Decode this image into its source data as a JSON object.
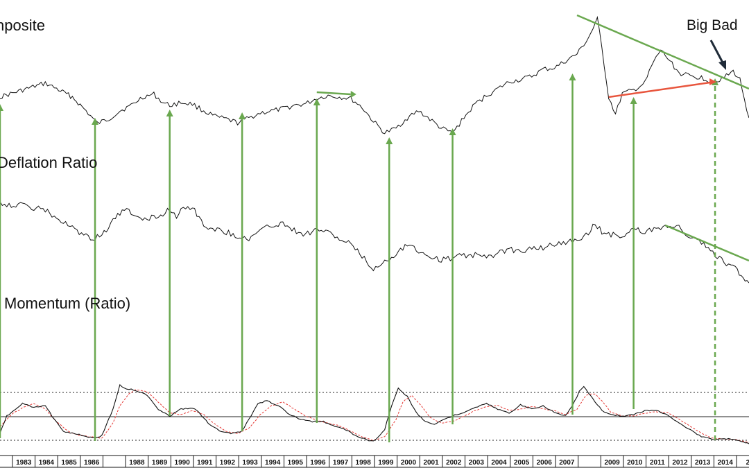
{
  "chart_data": {
    "type": "line",
    "panels": [
      {
        "id": "composite",
        "title": "nposite"
      },
      {
        "id": "ratio",
        "title": "Deflation Ratio"
      },
      {
        "id": "momentum",
        "title": "Momentum (Ratio)"
      }
    ],
    "annotation": "Big Bad",
    "year_labels": [
      "1983",
      "1984",
      "1985",
      "1986",
      "",
      "1988",
      "1989",
      "1990",
      "1991",
      "1992",
      "1993",
      "1994",
      "1995",
      "1996",
      "1997",
      "1998",
      "1999",
      "2000",
      "2001",
      "2002",
      "2003",
      "2004",
      "2005",
      "2006",
      "2007",
      "",
      "2009",
      "2010",
      "2011",
      "2012",
      "2013",
      "2014",
      "2"
    ],
    "x_range": [
      1982.0,
      2015.1
    ],
    "composite_series": [
      [
        1982.0,
        140
      ],
      [
        1983.0,
        130
      ],
      [
        1984.0,
        120
      ],
      [
        1984.5,
        128
      ],
      [
        1985.2,
        140
      ],
      [
        1985.8,
        160
      ],
      [
        1986.3,
        178
      ],
      [
        1986.8,
        172
      ],
      [
        1987.3,
        160
      ],
      [
        1987.8,
        152
      ],
      [
        1988.3,
        140
      ],
      [
        1988.8,
        136
      ],
      [
        1989.2,
        148
      ],
      [
        1989.5,
        152
      ],
      [
        1990.0,
        148
      ],
      [
        1990.5,
        150
      ],
      [
        1991.0,
        160
      ],
      [
        1991.5,
        168
      ],
      [
        1992.0,
        172
      ],
      [
        1992.5,
        177
      ],
      [
        1993.0,
        170
      ],
      [
        1993.5,
        163
      ],
      [
        1994.0,
        160
      ],
      [
        1994.5,
        157
      ],
      [
        1995.0,
        152
      ],
      [
        1995.5,
        150
      ],
      [
        1996.0,
        142
      ],
      [
        1996.5,
        138
      ],
      [
        1997.0,
        140
      ],
      [
        1997.5,
        142
      ],
      [
        1998.0,
        155
      ],
      [
        1998.5,
        175
      ],
      [
        1999.0,
        192
      ],
      [
        1999.5,
        185
      ],
      [
        2000.0,
        170
      ],
      [
        2000.5,
        160
      ],
      [
        2001.0,
        172
      ],
      [
        2001.5,
        185
      ],
      [
        2002.0,
        192
      ],
      [
        2002.5,
        170
      ],
      [
        2003.0,
        150
      ],
      [
        2003.5,
        138
      ],
      [
        2004.0,
        128
      ],
      [
        2004.5,
        118
      ],
      [
        2005.0,
        115
      ],
      [
        2005.5,
        110
      ],
      [
        2006.0,
        100
      ],
      [
        2006.5,
        98
      ],
      [
        2007.0,
        88
      ],
      [
        2007.5,
        78
      ],
      [
        2008.0,
        55
      ],
      [
        2008.4,
        28
      ],
      [
        2008.6,
        70
      ],
      [
        2008.9,
        140
      ],
      [
        2009.2,
        165
      ],
      [
        2009.5,
        135
      ],
      [
        2010.0,
        130
      ],
      [
        2010.5,
        120
      ],
      [
        2010.8,
        95
      ],
      [
        2011.2,
        72
      ],
      [
        2011.6,
        88
      ],
      [
        2012.0,
        105
      ],
      [
        2012.5,
        110
      ],
      [
        2013.0,
        112
      ],
      [
        2013.5,
        118
      ],
      [
        2014.0,
        112
      ],
      [
        2014.4,
        103
      ],
      [
        2014.7,
        115
      ],
      [
        2015.1,
        170
      ]
    ],
    "ratio_series": [
      [
        1982.0,
        292
      ],
      [
        1982.5,
        296
      ],
      [
        1983.0,
        296
      ],
      [
        1983.5,
        300
      ],
      [
        1984.0,
        303
      ],
      [
        1984.5,
        315
      ],
      [
        1985.0,
        325
      ],
      [
        1985.5,
        335
      ],
      [
        1986.0,
        345
      ],
      [
        1986.5,
        340
      ],
      [
        1987.0,
        318
      ],
      [
        1987.5,
        302
      ],
      [
        1988.0,
        312
      ],
      [
        1988.5,
        315
      ],
      [
        1989.0,
        312
      ],
      [
        1989.5,
        302
      ],
      [
        1989.8,
        312
      ],
      [
        1990.0,
        300
      ],
      [
        1990.5,
        298
      ],
      [
        1991.0,
        325
      ],
      [
        1991.5,
        330
      ],
      [
        1992.0,
        335
      ],
      [
        1992.5,
        340
      ],
      [
        1993.0,
        345
      ],
      [
        1993.5,
        332
      ],
      [
        1994.0,
        325
      ],
      [
        1994.5,
        322
      ],
      [
        1995.0,
        332
      ],
      [
        1995.5,
        338
      ],
      [
        1996.0,
        330
      ],
      [
        1996.5,
        335
      ],
      [
        1997.0,
        345
      ],
      [
        1997.5,
        352
      ],
      [
        1998.0,
        370
      ],
      [
        1998.5,
        388
      ],
      [
        1999.0,
        378
      ],
      [
        1999.5,
        365
      ],
      [
        2000.0,
        352
      ],
      [
        2000.5,
        362
      ],
      [
        2001.0,
        370
      ],
      [
        2001.5,
        375
      ],
      [
        2002.0,
        372
      ],
      [
        2002.5,
        368
      ],
      [
        2003.0,
        368
      ],
      [
        2003.5,
        372
      ],
      [
        2004.0,
        365
      ],
      [
        2004.5,
        360
      ],
      [
        2005.0,
        362
      ],
      [
        2005.5,
        358
      ],
      [
        2006.0,
        358
      ],
      [
        2006.5,
        352
      ],
      [
        2007.0,
        350
      ],
      [
        2007.5,
        345
      ],
      [
        2008.0,
        338
      ],
      [
        2008.3,
        322
      ],
      [
        2008.6,
        335
      ],
      [
        2009.0,
        338
      ],
      [
        2009.5,
        340
      ],
      [
        2010.0,
        330
      ],
      [
        2010.5,
        335
      ],
      [
        2011.0,
        330
      ],
      [
        2011.5,
        325
      ],
      [
        2012.0,
        328
      ],
      [
        2012.5,
        342
      ],
      [
        2013.0,
        350
      ],
      [
        2013.5,
        365
      ],
      [
        2014.0,
        378
      ],
      [
        2014.5,
        388
      ],
      [
        2015.1,
        408
      ]
    ],
    "momentum_series": [
      [
        1982.0,
        625
      ],
      [
        1982.3,
        600
      ],
      [
        1982.7,
        590
      ],
      [
        1983.0,
        582
      ],
      [
        1983.5,
        588
      ],
      [
        1984.0,
        585
      ],
      [
        1984.4,
        605
      ],
      [
        1984.8,
        622
      ],
      [
        1985.3,
        625
      ],
      [
        1985.8,
        630
      ],
      [
        1986.2,
        632
      ],
      [
        1986.5,
        628
      ],
      [
        1987.0,
        590
      ],
      [
        1987.3,
        555
      ],
      [
        1987.5,
        560
      ],
      [
        1988.0,
        563
      ],
      [
        1988.5,
        570
      ],
      [
        1989.0,
        590
      ],
      [
        1989.5,
        600
      ],
      [
        1990.0,
        590
      ],
      [
        1990.5,
        588
      ],
      [
        1990.8,
        595
      ],
      [
        1991.2,
        610
      ],
      [
        1991.7,
        622
      ],
      [
        1992.2,
        625
      ],
      [
        1992.7,
        622
      ],
      [
        1993.0,
        605
      ],
      [
        1993.4,
        582
      ],
      [
        1993.8,
        578
      ],
      [
        1994.3,
        585
      ],
      [
        1994.8,
        598
      ],
      [
        1995.3,
        605
      ],
      [
        1995.8,
        608
      ],
      [
        1996.3,
        608
      ],
      [
        1996.8,
        615
      ],
      [
        1997.3,
        620
      ],
      [
        1997.8,
        630
      ],
      [
        1998.3,
        635
      ],
      [
        1998.6,
        635
      ],
      [
        1999.0,
        620
      ],
      [
        1999.3,
        585
      ],
      [
        1999.6,
        560
      ],
      [
        2000.0,
        572
      ],
      [
        2000.4,
        595
      ],
      [
        2000.8,
        608
      ],
      [
        2001.2,
        612
      ],
      [
        2001.6,
        605
      ],
      [
        2002.0,
        600
      ],
      [
        2002.5,
        595
      ],
      [
        2003.0,
        588
      ],
      [
        2003.5,
        582
      ],
      [
        2004.0,
        590
      ],
      [
        2004.5,
        596
      ],
      [
        2005.0,
        584
      ],
      [
        2005.5,
        590
      ],
      [
        2006.0,
        585
      ],
      [
        2006.5,
        595
      ],
      [
        2007.0,
        600
      ],
      [
        2007.3,
        585
      ],
      [
        2007.6,
        565
      ],
      [
        2007.8,
        558
      ],
      [
        2008.2,
        575
      ],
      [
        2008.6,
        592
      ],
      [
        2009.0,
        598
      ],
      [
        2009.5,
        600
      ],
      [
        2010.0,
        598
      ],
      [
        2010.5,
        592
      ],
      [
        2011.0,
        592
      ],
      [
        2011.5,
        598
      ],
      [
        2012.0,
        610
      ],
      [
        2012.5,
        620
      ],
      [
        2013.0,
        630
      ],
      [
        2013.5,
        634
      ],
      [
        2014.0,
        632
      ],
      [
        2014.5,
        635
      ],
      [
        2015.1,
        640
      ]
    ],
    "momentum_signal_series": [
      [
        1982.0,
        615
      ],
      [
        1982.5,
        598
      ],
      [
        1983.0,
        588
      ],
      [
        1983.5,
        582
      ],
      [
        1984.0,
        590
      ],
      [
        1984.5,
        608
      ],
      [
        1985.0,
        622
      ],
      [
        1985.5,
        628
      ],
      [
        1986.0,
        630
      ],
      [
        1986.5,
        632
      ],
      [
        1987.0,
        610
      ],
      [
        1987.3,
        585
      ],
      [
        1987.7,
        568
      ],
      [
        1988.0,
        562
      ],
      [
        1988.5,
        565
      ],
      [
        1989.0,
        580
      ],
      [
        1989.5,
        595
      ],
      [
        1990.0,
        598
      ],
      [
        1990.5,
        592
      ],
      [
        1991.0,
        598
      ],
      [
        1991.5,
        612
      ],
      [
        1992.0,
        622
      ],
      [
        1992.5,
        625
      ],
      [
        1993.0,
        618
      ],
      [
        1993.5,
        598
      ],
      [
        1994.0,
        585
      ],
      [
        1994.5,
        580
      ],
      [
        1995.0,
        590
      ],
      [
        1995.5,
        600
      ],
      [
        1996.0,
        606
      ],
      [
        1996.5,
        610
      ],
      [
        1997.0,
        614
      ],
      [
        1997.5,
        622
      ],
      [
        1998.0,
        630
      ],
      [
        1998.5,
        635
      ],
      [
        1999.0,
        630
      ],
      [
        1999.5,
        605
      ],
      [
        1999.8,
        580
      ],
      [
        2000.2,
        570
      ],
      [
        2000.6,
        585
      ],
      [
        2001.0,
        602
      ],
      [
        2001.5,
        610
      ],
      [
        2002.0,
        608
      ],
      [
        2002.5,
        600
      ],
      [
        2003.0,
        592
      ],
      [
        2003.5,
        586
      ],
      [
        2004.0,
        585
      ],
      [
        2004.5,
        592
      ],
      [
        2005.0,
        590
      ],
      [
        2005.5,
        586
      ],
      [
        2006.0,
        590
      ],
      [
        2006.5,
        592
      ],
      [
        2007.0,
        598
      ],
      [
        2007.5,
        590
      ],
      [
        2007.9,
        570
      ],
      [
        2008.3,
        568
      ],
      [
        2008.7,
        582
      ],
      [
        2009.0,
        595
      ],
      [
        2009.5,
        600
      ],
      [
        2010.0,
        600
      ],
      [
        2010.5,
        596
      ],
      [
        2011.0,
        594
      ],
      [
        2011.5,
        595
      ],
      [
        2012.0,
        604
      ],
      [
        2012.5,
        615
      ],
      [
        2013.0,
        625
      ],
      [
        2013.5,
        632
      ],
      [
        2014.0,
        633
      ],
      [
        2014.5,
        634
      ],
      [
        2015.1,
        638
      ]
    ],
    "reference_lines": [
      566,
      601,
      635
    ],
    "signal_years": [
      1982.0,
      1986.2,
      1989.5,
      1992.7,
      1996.0,
      1999.2,
      2002.0,
      2007.3,
      2010.0,
      2013.6
    ],
    "trendlines": [
      {
        "color": "#6aa84f",
        "from": [
          2007.5,
          22
        ],
        "to": [
          2015.1,
          128
        ]
      },
      {
        "color": "#6aa84f",
        "from": [
          1996.0,
          133
        ],
        "to": [
          1997.5,
          136
        ]
      },
      {
        "color": "#e8553d",
        "from": [
          2008.9,
          140
        ],
        "to": [
          2013.6,
          118
        ]
      },
      {
        "color": "#6aa84f",
        "from": [
          2011.4,
          325
        ],
        "to": [
          2015.1,
          376
        ]
      }
    ],
    "colors": {
      "price": "#111111",
      "signal": "#e53935",
      "arrows": "#6aa84f",
      "bear_line": "#e8553d",
      "annot_arrow": "#1f2b38"
    }
  }
}
